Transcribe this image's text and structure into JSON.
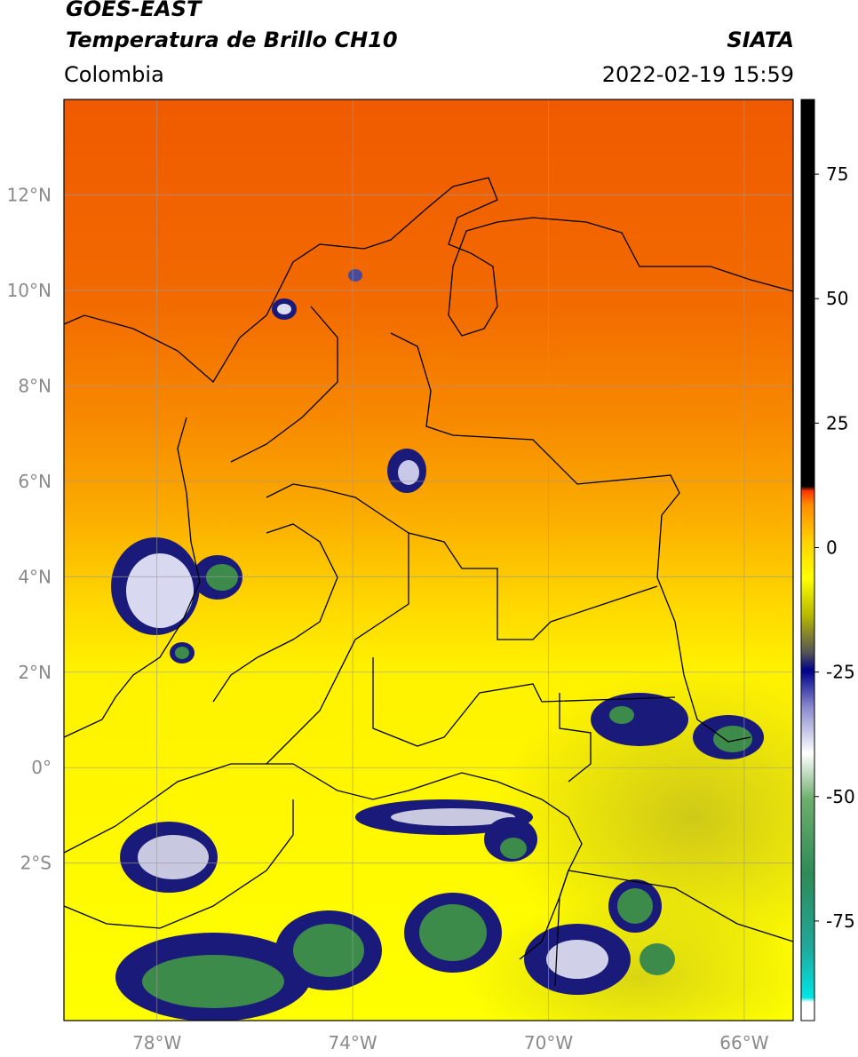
{
  "header": {
    "title_line1": "GOES-EAST",
    "title_line2": "Temperatura de Brillo CH10",
    "source": "SIATA",
    "region": "Colombia",
    "datetime": "2022-02-19 15:59"
  },
  "map": {
    "lon_range": [
      -79.9,
      -65.0
    ],
    "lat_range": [
      -5.3,
      14.0
    ],
    "grid": true,
    "lat_ticks": [
      {
        "value": 12,
        "label": "12°N"
      },
      {
        "value": 10,
        "label": "10°N"
      },
      {
        "value": 8,
        "label": "8°N"
      },
      {
        "value": 6,
        "label": "6°N"
      },
      {
        "value": 4,
        "label": "4°N"
      },
      {
        "value": 2,
        "label": "2°N"
      },
      {
        "value": 0,
        "label": "0°"
      },
      {
        "value": -2,
        "label": "2°S"
      }
    ],
    "lon_ticks": [
      {
        "value": -78,
        "label": "78°W"
      },
      {
        "value": -74,
        "label": "74°W"
      },
      {
        "value": -70,
        "label": "70°W"
      },
      {
        "value": -66,
        "label": "66°W"
      }
    ]
  },
  "colorbar": {
    "range": [
      -95,
      90
    ],
    "ticks": [
      75,
      50,
      25,
      0,
      -25,
      -50,
      -75
    ],
    "colors": [
      "#ffffff",
      "#00e5e5",
      "#2e8b57",
      "#ffffff",
      "#00008b",
      "#b8b800",
      "#ffff00",
      "#ff8c00",
      "#ff0000",
      "#000000"
    ]
  }
}
